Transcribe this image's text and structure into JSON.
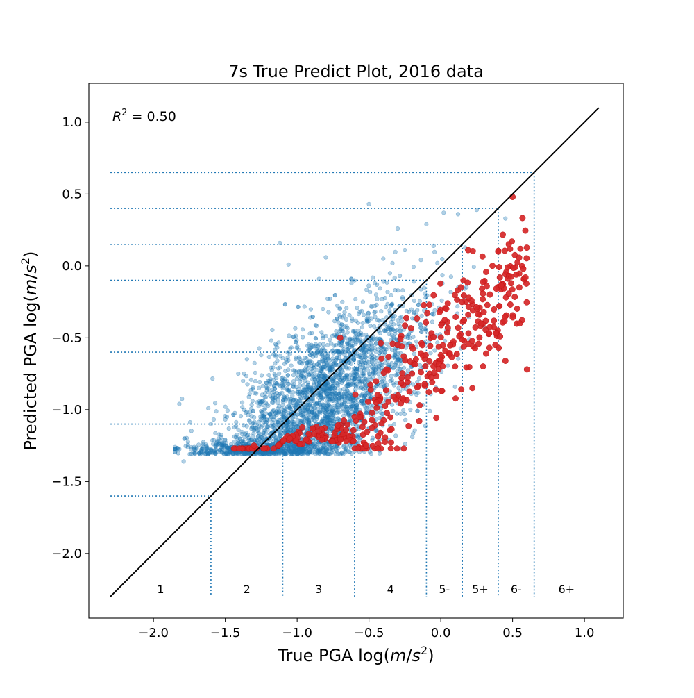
{
  "chart_data": {
    "type": "scatter",
    "title": "7s True Predict Plot, 2016 data",
    "xlabel": "True PGA log(m/s²)",
    "ylabel": "Predicted PGA log(m/s²)",
    "xlim": [
      -2.45,
      1.27
    ],
    "ylim": [
      -2.45,
      1.27
    ],
    "xticks": [
      -2.0,
      -1.5,
      -1.0,
      -0.5,
      0.0,
      0.5,
      1.0
    ],
    "yticks": [
      -2.0,
      -1.5,
      -1.0,
      -0.5,
      0.0,
      0.5,
      1.0
    ],
    "xtick_labels": [
      "−2.0",
      "−1.5",
      "−1.0",
      "−0.5",
      "0.0",
      "0.5",
      "1.0"
    ],
    "ytick_labels": [
      "−2.0",
      "−1.5",
      "−1.0",
      "−0.5",
      "0.0",
      "0.5",
      "1.0"
    ],
    "annotation": "R² = 0.50",
    "r_squared": 0.5,
    "identity_line": {
      "from": [
        -2.3,
        -2.3
      ],
      "to": [
        1.1,
        1.1
      ],
      "color": "#000000"
    },
    "intensity_thresholds": [
      -1.6,
      -1.1,
      -0.6,
      -0.1,
      0.15,
      0.4,
      0.65
    ],
    "intensity_labels": [
      "1",
      "2",
      "3",
      "4",
      "5-",
      "5+",
      "6-",
      "6+"
    ],
    "series": [
      {
        "color": "#1f77b4",
        "approx_count": 3000,
        "representative_points": [
          [
            -1.82,
            -0.96
          ],
          [
            -1.79,
            -1.36
          ],
          [
            -1.76,
            -1.26
          ],
          [
            -1.6,
            -1.1
          ],
          [
            -1.5,
            -0.98
          ],
          [
            -1.41,
            -0.75
          ],
          [
            -1.35,
            -1.25
          ],
          [
            -1.25,
            -0.62
          ],
          [
            -1.18,
            -0.52
          ],
          [
            -1.12,
            0.16
          ],
          [
            -1.06,
            0.01
          ],
          [
            -1.0,
            -0.88
          ],
          [
            -0.9,
            -0.55
          ],
          [
            -0.82,
            -0.3
          ],
          [
            -0.8,
            0.06
          ],
          [
            -0.7,
            -0.45
          ],
          [
            -0.6,
            -0.1
          ],
          [
            -0.5,
            0.43
          ],
          [
            -0.45,
            -0.2
          ],
          [
            -0.4,
            0.05
          ],
          [
            -0.3,
            0.26
          ],
          [
            -0.25,
            0.11
          ],
          [
            -0.1,
            0.29
          ],
          [
            -0.05,
            0.14
          ],
          [
            0.02,
            0.37
          ],
          [
            0.12,
            0.36
          ],
          [
            0.25,
            0.39
          ],
          [
            0.45,
            0.33
          ]
        ]
      },
      {
        "color": "#d62728",
        "approx_count": 400,
        "representative_points": [
          [
            -1.44,
            -1.27
          ],
          [
            -1.3,
            -1.25
          ],
          [
            -1.05,
            -1.2
          ],
          [
            -0.85,
            -1.15
          ],
          [
            -0.7,
            -0.5
          ],
          [
            -0.6,
            -1.05
          ],
          [
            -0.45,
            -0.95
          ],
          [
            -0.3,
            -0.55
          ],
          [
            -0.2,
            -0.75
          ],
          [
            -0.15,
            -1.08
          ],
          [
            -0.08,
            -0.27
          ],
          [
            0.0,
            -0.62
          ],
          [
            0.1,
            -0.7
          ],
          [
            0.14,
            -0.15
          ],
          [
            0.19,
            0.11
          ],
          [
            0.22,
            -0.85
          ],
          [
            0.28,
            -0.4
          ],
          [
            0.32,
            -0.14
          ],
          [
            0.38,
            -0.55
          ],
          [
            0.4,
            0.1
          ],
          [
            0.45,
            -0.66
          ],
          [
            0.5,
            0.48
          ],
          [
            0.55,
            -0.4
          ],
          [
            0.59,
            -0.08
          ],
          [
            0.6,
            -0.72
          ]
        ]
      }
    ]
  }
}
